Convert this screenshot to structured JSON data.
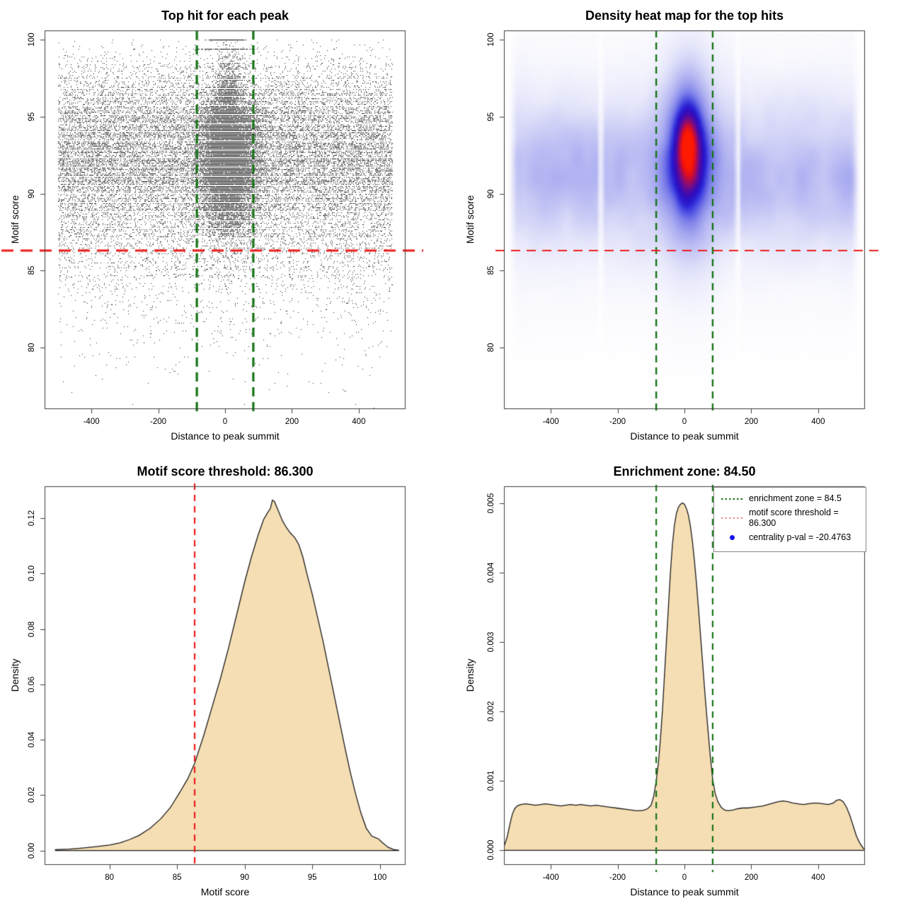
{
  "figure": {
    "background": "#ffffff"
  },
  "colors": {
    "enrichment_zone_line": "#167416",
    "threshold_line": "#ee1c1c",
    "density_fill": "#f5deb3",
    "density_stroke": "#1a1a1a",
    "legend_red_swatch": "#f09090",
    "legend_blue_dot": "#1212f0",
    "frame": "#3c3c3c"
  },
  "thresholds": {
    "motif_score_threshold": 86.3,
    "enrichment_zone": 84.5,
    "centrality_p_val": -20.4763
  },
  "chart_data": [
    {
      "type": "scatter",
      "title": "Top hit for each peak",
      "xlabel": "Distance to peak summit",
      "ylabel": "Motif score",
      "xlim": [
        -540,
        540
      ],
      "ylim": [
        76.0,
        100.6
      ],
      "xticks": [
        {
          "v": -400,
          "l": "-400"
        },
        {
          "v": -200,
          "l": "-200"
        },
        {
          "v": 0,
          "l": "0"
        },
        {
          "v": 200,
          "l": "200"
        },
        {
          "v": 400,
          "l": "400"
        }
      ],
      "yticks": [
        {
          "v": 80,
          "l": "80"
        },
        {
          "v": 85,
          "l": "85"
        },
        {
          "v": 90,
          "l": "90"
        },
        {
          "v": 95,
          "l": "95"
        },
        {
          "v": 100,
          "l": "100"
        }
      ],
      "lines": {
        "vlines": {
          "x": [
            -84.5,
            84.5
          ],
          "color": "#167416",
          "dash": [
            13,
            8
          ],
          "width": 3.2
        },
        "hline": {
          "y": 86.3,
          "color": "#ee1c1c",
          "dash": [
            17,
            10
          ],
          "width": 3,
          "x_extent": [
            2,
            598
          ]
        }
      },
      "points_model": {
        "seed": 7,
        "point_color": "rgba(0,0,0,0.9)",
        "background": {
          "n": 23500,
          "x_uniform": [
            -500,
            500
          ]
        },
        "cluster": {
          "n": 15000,
          "x_mean": 8,
          "x_sd": 42,
          "y_mean": 92.25,
          "y_sd": 2.55,
          "taper_above": 96,
          "taper_factor": 0.55,
          "thin_below": 87.3,
          "thin_keep": 0.5
        },
        "top_rows": [
          {
            "y": 100.0,
            "n": 240,
            "x_sd": 30
          },
          {
            "y": 99.4,
            "n": 130,
            "x_sd": 40
          }
        ],
        "score_step": 0.1
      }
    },
    {
      "type": "heatmap",
      "title": "Density heat map for the top hits",
      "xlabel": "Distance to peak summit",
      "ylabel": "Motif score",
      "xlim": [
        -540,
        540
      ],
      "ylim": [
        76.0,
        100.6
      ],
      "xticks": [
        {
          "v": -400,
          "l": "-400"
        },
        {
          "v": -200,
          "l": "-200"
        },
        {
          "v": 0,
          "l": "0"
        },
        {
          "v": 200,
          "l": "200"
        },
        {
          "v": 400,
          "l": "400"
        }
      ],
      "yticks": [
        {
          "v": 80,
          "l": "80"
        },
        {
          "v": 85,
          "l": "85"
        },
        {
          "v": 90,
          "l": "90"
        },
        {
          "v": 95,
          "l": "95"
        },
        {
          "v": 100,
          "l": "100"
        }
      ],
      "lines": {
        "vlines": {
          "x": [
            -84.5,
            84.5
          ],
          "color": "#167416",
          "dash": [
            10,
            7
          ],
          "width": 2.4
        },
        "hline": {
          "y": 86.3,
          "color": "#ee1c1c",
          "dash": [
            13,
            9
          ],
          "width": 2.2,
          "x_extent": [
            700,
            1250
          ]
        }
      },
      "density_model": {
        "seed": 11,
        "band": [
          {
            "center": 91.2,
            "sigma": 3.0,
            "weight": 0.3
          },
          {
            "center": 91.5,
            "sigma": 5.5,
            "weight": 0.1
          }
        ],
        "noise": {
          "base": 0.75,
          "amplitude": 0.5
        },
        "blobs": [
          {
            "x": 12,
            "sx": 40,
            "y": 92.6,
            "sy": 2.9,
            "weight": 0.78
          },
          {
            "x": 12,
            "sx": 58,
            "y": 92.3,
            "sy": 4.8,
            "weight": 0.28
          },
          {
            "x": 8,
            "sx": 24,
            "y": 94.6,
            "sy": 1.4,
            "weight": 0.14
          }
        ],
        "x_data_range": [
          -500,
          500
        ],
        "white_stripes": [
          -250,
          160
        ],
        "normalize": 1.4,
        "palette": [
          [
            0.0,
            "#ffffff"
          ],
          [
            0.05,
            "#f4f4fd"
          ],
          [
            0.12,
            "#e4e5fa"
          ],
          [
            0.22,
            "#c9caf5"
          ],
          [
            0.35,
            "#a6a8f0"
          ],
          [
            0.48,
            "#7d7fe9"
          ],
          [
            0.58,
            "#4b4ee2"
          ],
          [
            0.66,
            "#2a20d5"
          ],
          [
            0.74,
            "#2e0cbe"
          ],
          [
            0.8,
            "#4d0ba6"
          ],
          [
            0.86,
            "#7c0b82"
          ],
          [
            0.91,
            "#b00c4e"
          ],
          [
            0.95,
            "#e00d1d"
          ],
          [
            1.0,
            "#ff1a00"
          ]
        ]
      }
    },
    {
      "type": "area",
      "title": "Motif score threshold: 86.300",
      "xlabel": "Motif score",
      "ylabel": "Density",
      "xlim": [
        75.2,
        101.9
      ],
      "ylim": [
        -0.0052,
        0.1315
      ],
      "xticks": [
        {
          "v": 80,
          "l": "80"
        },
        {
          "v": 85,
          "l": "85"
        },
        {
          "v": 90,
          "l": "90"
        },
        {
          "v": 95,
          "l": "95"
        },
        {
          "v": 100,
          "l": "100"
        }
      ],
      "yticks": [
        {
          "v": 0,
          "l": "0.00"
        },
        {
          "v": 0.02,
          "l": "0.02"
        },
        {
          "v": 0.04,
          "l": "0.04"
        },
        {
          "v": 0.06,
          "l": "0.06"
        },
        {
          "v": 0.08,
          "l": "0.08"
        },
        {
          "v": 0.1,
          "l": "0.10"
        },
        {
          "v": 0.12,
          "l": "0.12"
        }
      ],
      "lines": {
        "vlines": {
          "x": [
            86.3
          ],
          "color": "#ee1c1c",
          "dash": [
            9,
            7
          ],
          "width": 2.2,
          "y_extent": [
            683,
            1226
          ]
        }
      },
      "curve": [
        [
          76,
          0.0003
        ],
        [
          77,
          0.0005
        ],
        [
          78,
          0.0009
        ],
        [
          79,
          0.0014
        ],
        [
          80,
          0.002
        ],
        [
          80.8,
          0.0028
        ],
        [
          81.5,
          0.004
        ],
        [
          82.2,
          0.0055
        ],
        [
          83,
          0.008
        ],
        [
          83.8,
          0.0115
        ],
        [
          84.5,
          0.0155
        ],
        [
          85.2,
          0.021
        ],
        [
          85.8,
          0.026
        ],
        [
          86.3,
          0.0315
        ],
        [
          87,
          0.042
        ],
        [
          87.6,
          0.052
        ],
        [
          88.2,
          0.062
        ],
        [
          88.8,
          0.073
        ],
        [
          89.4,
          0.085
        ],
        [
          90,
          0.097
        ],
        [
          90.5,
          0.106
        ],
        [
          91,
          0.114
        ],
        [
          91.4,
          0.1195
        ],
        [
          91.7,
          0.122
        ],
        [
          91.9,
          0.1235
        ],
        [
          92.05,
          0.1265
        ],
        [
          92.2,
          0.126
        ],
        [
          92.5,
          0.1225
        ],
        [
          92.8,
          0.119
        ],
        [
          93.1,
          0.1165
        ],
        [
          93.4,
          0.1145
        ],
        [
          93.7,
          0.113
        ],
        [
          94,
          0.1105
        ],
        [
          94.3,
          0.106
        ],
        [
          94.6,
          0.1
        ],
        [
          95,
          0.0925
        ],
        [
          95.4,
          0.084
        ],
        [
          95.8,
          0.0755
        ],
        [
          96.2,
          0.066
        ],
        [
          96.6,
          0.0565
        ],
        [
          97,
          0.047
        ],
        [
          97.4,
          0.0375
        ],
        [
          97.8,
          0.0285
        ],
        [
          98.2,
          0.0205
        ],
        [
          98.6,
          0.0135
        ],
        [
          99,
          0.008
        ],
        [
          99.4,
          0.0052
        ],
        [
          99.7,
          0.0046
        ],
        [
          99.9,
          0.0042
        ],
        [
          100.2,
          0.0028
        ],
        [
          100.6,
          0.0012
        ],
        [
          101,
          0.0004
        ],
        [
          101.4,
          0.0001
        ]
      ]
    },
    {
      "type": "area",
      "title": "Enrichment zone: 84.50",
      "xlabel": "Distance to peak summit",
      "ylabel": "Density",
      "xlim": [
        -540,
        540
      ],
      "ylim": [
        -0.00021,
        0.00524
      ],
      "xticks": [
        {
          "v": -400,
          "l": "-400"
        },
        {
          "v": -200,
          "l": "-200"
        },
        {
          "v": 0,
          "l": "0"
        },
        {
          "v": 200,
          "l": "200"
        },
        {
          "v": 400,
          "l": "400"
        }
      ],
      "yticks": [
        {
          "v": 0,
          "l": "0.000"
        },
        {
          "v": 0.001,
          "l": "0.001"
        },
        {
          "v": 0.002,
          "l": "0.002"
        },
        {
          "v": 0.003,
          "l": "0.003"
        },
        {
          "v": 0.004,
          "l": "0.004"
        },
        {
          "v": 0.005,
          "l": "0.005"
        }
      ],
      "lines": {
        "vlines": {
          "x": [
            -84.5,
            84.5
          ],
          "color": "#167416",
          "dash": [
            9,
            7
          ],
          "width": 2.2,
          "y_extent": [
            685,
            1232
          ]
        }
      },
      "curve": [
        [
          -545,
          0
        ],
        [
          -538,
          8e-05
        ],
        [
          -530,
          0.0002
        ],
        [
          -522,
          0.00038
        ],
        [
          -515,
          0.00052
        ],
        [
          -508,
          0.0006
        ],
        [
          -500,
          0.00064
        ],
        [
          -490,
          0.00066
        ],
        [
          -475,
          0.00067
        ],
        [
          -460,
          0.00066
        ],
        [
          -445,
          0.00065
        ],
        [
          -430,
          0.00066
        ],
        [
          -415,
          0.00067
        ],
        [
          -400,
          0.00066
        ],
        [
          -385,
          0.00065
        ],
        [
          -370,
          0.00064
        ],
        [
          -355,
          0.00065
        ],
        [
          -340,
          0.00066
        ],
        [
          -325,
          0.00065
        ],
        [
          -310,
          0.00066
        ],
        [
          -295,
          0.00065
        ],
        [
          -280,
          0.00064
        ],
        [
          -265,
          0.00065
        ],
        [
          -250,
          0.00064
        ],
        [
          -235,
          0.00063
        ],
        [
          -220,
          0.00062
        ],
        [
          -205,
          0.00061
        ],
        [
          -190,
          0.0006
        ],
        [
          -175,
          0.00059
        ],
        [
          -160,
          0.00058
        ],
        [
          -145,
          0.00057
        ],
        [
          -130,
          0.00057
        ],
        [
          -120,
          0.00058
        ],
        [
          -110,
          0.0006
        ],
        [
          -100,
          0.00065
        ],
        [
          -92,
          0.00078
        ],
        [
          -84.5,
          0.001
        ],
        [
          -78,
          0.00125
        ],
        [
          -72,
          0.0016
        ],
        [
          -66,
          0.002
        ],
        [
          -60,
          0.0025
        ],
        [
          -54,
          0.003
        ],
        [
          -48,
          0.0035
        ],
        [
          -42,
          0.004
        ],
        [
          -36,
          0.0044
        ],
        [
          -30,
          0.00468
        ],
        [
          -24,
          0.00485
        ],
        [
          -18,
          0.00494
        ],
        [
          -12,
          0.00498
        ],
        [
          -6,
          0.005
        ],
        [
          0,
          0.00498
        ],
        [
          6,
          0.00492
        ],
        [
          12,
          0.00482
        ],
        [
          18,
          0.00466
        ],
        [
          24,
          0.00444
        ],
        [
          30,
          0.00416
        ],
        [
          36,
          0.00384
        ],
        [
          42,
          0.00348
        ],
        [
          48,
          0.0031
        ],
        [
          54,
          0.00272
        ],
        [
          60,
          0.00234
        ],
        [
          66,
          0.00198
        ],
        [
          72,
          0.00164
        ],
        [
          78,
          0.00132
        ],
        [
          84.5,
          0.00102
        ],
        [
          92,
          0.00082
        ],
        [
          100,
          0.0007
        ],
        [
          110,
          0.00062
        ],
        [
          120,
          0.00058
        ],
        [
          130,
          0.00057
        ],
        [
          145,
          0.00058
        ],
        [
          160,
          0.0006
        ],
        [
          175,
          0.00061
        ],
        [
          190,
          0.00061
        ],
        [
          205,
          0.00062
        ],
        [
          220,
          0.00063
        ],
        [
          235,
          0.00064
        ],
        [
          250,
          0.00066
        ],
        [
          265,
          0.00068
        ],
        [
          280,
          0.0007
        ],
        [
          295,
          0.00071
        ],
        [
          310,
          0.0007
        ],
        [
          325,
          0.00068
        ],
        [
          340,
          0.00067
        ],
        [
          355,
          0.00066
        ],
        [
          370,
          0.00067
        ],
        [
          385,
          0.00068
        ],
        [
          400,
          0.00068
        ],
        [
          415,
          0.00067
        ],
        [
          430,
          0.00066
        ],
        [
          445,
          0.00068
        ],
        [
          455,
          0.00072
        ],
        [
          465,
          0.00073
        ],
        [
          475,
          0.0007
        ],
        [
          485,
          0.00062
        ],
        [
          495,
          0.0005
        ],
        [
          505,
          0.00035
        ],
        [
          515,
          0.0002
        ],
        [
          525,
          0.0001
        ],
        [
          535,
          3e-05
        ],
        [
          545,
          0
        ]
      ],
      "legend": {
        "items": [
          {
            "type": "dotted-line",
            "color": "#167416",
            "label": "enrichment zone = 84.5"
          },
          {
            "type": "dotted-line",
            "color": "#f09090",
            "label": "motif score threshold = 86.300"
          },
          {
            "type": "dot",
            "color": "#1212f0",
            "label": "centrality p-val = -20.4763"
          }
        ]
      }
    }
  ]
}
